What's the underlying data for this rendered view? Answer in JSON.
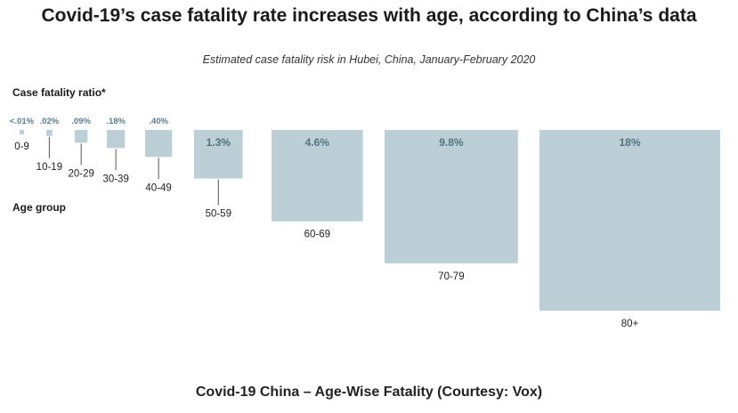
{
  "header": {
    "title": "Covid-19’s case fatality rate increases with age, according to China’s data",
    "subtitle": "Estimated case fatality risk in Hubei, China, January-February 2020"
  },
  "caption": "Covid-19 China – Age-Wise Fatality (Courtesy: Vox)",
  "colors": {
    "bar": "#bccfd6",
    "value_small": "#5a7c8a",
    "value_big": "#4f7482"
  },
  "chart_data": {
    "type": "bar",
    "title": "Covid-19’s case fatality rate increases with age, according to China’s data",
    "subtitle": "Estimated case fatality risk in Hubei, China, January-February 2020",
    "value_axis_label": "Case fatality ratio*",
    "category_axis_label": "Age group",
    "encoding": "square area proportional to value",
    "categories": [
      "0-9",
      "10-19",
      "20-29",
      "30-39",
      "40-49",
      "50-59",
      "60-69",
      "70-79",
      "80+"
    ],
    "values": [
      0.01,
      0.02,
      0.09,
      0.18,
      0.4,
      1.3,
      4.6,
      9.8,
      18
    ],
    "value_labels": [
      "<.01%",
      ".02%",
      ".09%",
      ".18%",
      ".40%",
      "1.3%",
      "4.6%",
      "9.8%",
      "18%"
    ],
    "unit": "%"
  }
}
